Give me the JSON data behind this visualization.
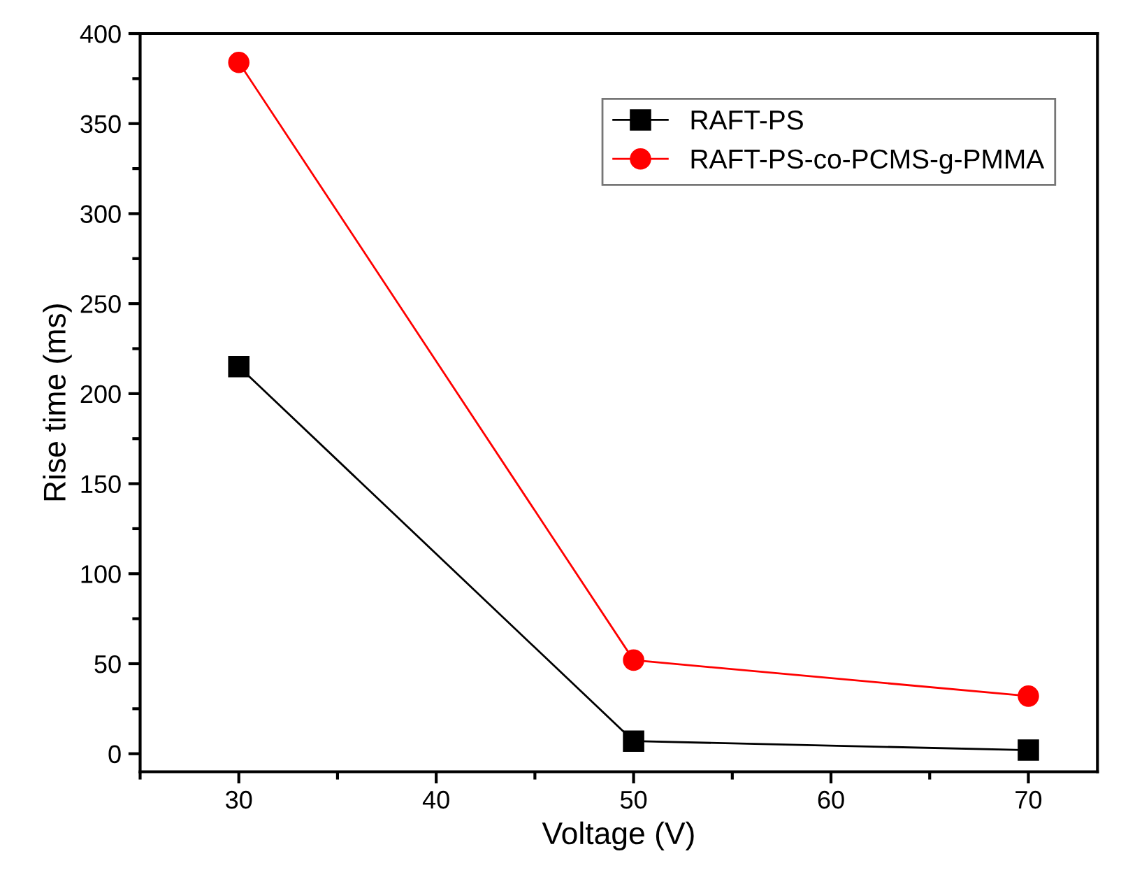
{
  "chart_data": {
    "type": "line",
    "xlabel": "Voltage (V)",
    "ylabel": "Rise time (ms)",
    "x": [
      30,
      50,
      70
    ],
    "series": [
      {
        "name": "RAFT-PS",
        "color": "#000000",
        "marker": "square",
        "values": [
          215,
          7,
          2
        ]
      },
      {
        "name": "RAFT-PS-co-PCMS-g-PMMA",
        "color": "#ff0000",
        "marker": "circle",
        "values": [
          384,
          52,
          32
        ]
      }
    ],
    "xlim": [
      25,
      73.5
    ],
    "xticks": [
      30,
      40,
      50,
      60,
      70
    ],
    "ylim": [
      -10,
      400
    ],
    "yticks": [
      0,
      50,
      100,
      150,
      200,
      250,
      300,
      350,
      400
    ],
    "grid": false,
    "legend": "top right",
    "line_style": "solid"
  }
}
